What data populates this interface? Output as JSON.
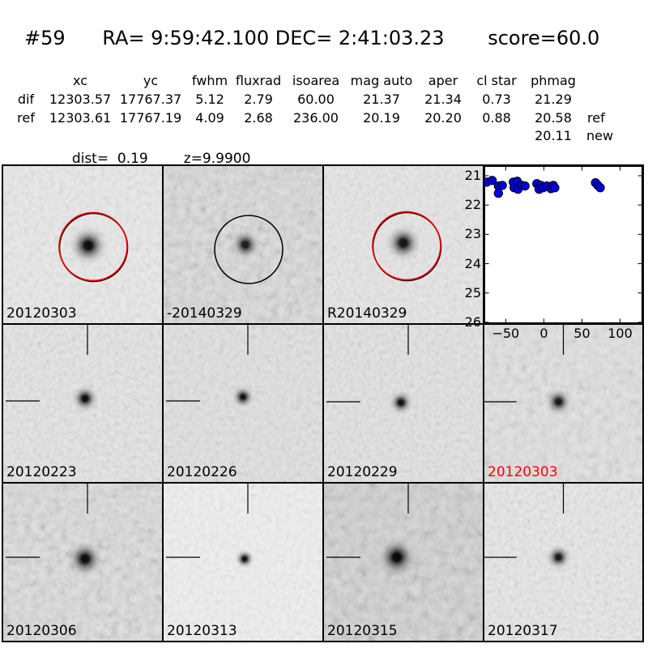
{
  "header": {
    "id": "#59",
    "coords": "RA= 9:59:42.100 DEC= 2:41:03.23",
    "score": "score=60.0"
  },
  "table": {
    "headers": {
      "xc": "xc",
      "yc": "yc",
      "fwhm": "fwhm",
      "fluxrad": "fluxrad",
      "isoarea": "isoarea",
      "mag_auto": "mag auto",
      "aper": "aper",
      "cl_star": "cl star",
      "phmag": "phmag"
    },
    "dif": {
      "name": "dif",
      "xc": "12303.57",
      "yc": "17767.37",
      "fwhm": "5.12",
      "fluxrad": "2.79",
      "isoarea": "60.00",
      "mag_auto": "21.37",
      "aper": "21.34",
      "cl_star": "0.73",
      "phmag": "21.29",
      "suffix": ""
    },
    "ref": {
      "name": "ref",
      "xc": "12303.61",
      "yc": "17767.19",
      "fwhm": "4.09",
      "fluxrad": "2.68",
      "isoarea": "236.00",
      "mag_auto": "20.19",
      "aper": "20.20",
      "cl_star": "0.88",
      "phmag": "20.58",
      "suffix": "ref"
    },
    "new_phmag": {
      "value": "20.11",
      "suffix": "new"
    },
    "dist": "dist=  0.19",
    "z": "z=9.9900"
  },
  "panels": [
    {
      "label": "20120303",
      "label_color": "#000000"
    },
    {
      "label": "-20140329",
      "label_color": "#000000"
    },
    {
      "label": "R20140329",
      "label_color": "#000000"
    },
    {
      "label": "20120223",
      "label_color": "#000000"
    },
    {
      "label": "20120226",
      "label_color": "#000000"
    },
    {
      "label": "20120229",
      "label_color": "#000000"
    },
    {
      "label": "20120303",
      "label_color": "#ff0000"
    },
    {
      "label": "20120306",
      "label_color": "#000000"
    },
    {
      "label": "20120313",
      "label_color": "#000000"
    },
    {
      "label": "20120315",
      "label_color": "#000000"
    },
    {
      "label": "20120317",
      "label_color": "#000000"
    }
  ],
  "colors": {
    "accent_red": "#e60000",
    "marker_blue": "#0000dd",
    "highlight_label_red": "#ff0000"
  },
  "chart_data": {
    "type": "scatter",
    "title": "",
    "xlabel": "",
    "ylabel": "",
    "xlim": [
      -78,
      129.2
    ],
    "ylim": [
      20.67,
      26.03
    ],
    "y_inverted": true,
    "grid": false,
    "legend": null,
    "xticks": [
      -50,
      0,
      50,
      100
    ],
    "yticks": [
      21,
      22,
      23,
      24,
      25,
      26
    ],
    "marker": "o",
    "marker_color": "#0000dd",
    "points": [
      [
        -75.0,
        21.22
      ],
      [
        -67.8,
        21.16
      ],
      [
        -59.6,
        21.35
      ],
      [
        -54.5,
        21.33
      ],
      [
        -59.6,
        21.6
      ],
      [
        -40.1,
        21.22
      ],
      [
        -34.9,
        21.19
      ],
      [
        -39.0,
        21.41
      ],
      [
        -33.9,
        21.46
      ],
      [
        -28.8,
        21.33
      ],
      [
        -24.7,
        21.35
      ],
      [
        -9.2,
        21.27
      ],
      [
        -4.1,
        21.33
      ],
      [
        -6.2,
        21.46
      ],
      [
        -1.0,
        21.41
      ],
      [
        4.1,
        21.35
      ],
      [
        9.3,
        21.44
      ],
      [
        12.3,
        21.33
      ],
      [
        14.4,
        21.41
      ],
      [
        67.8,
        21.24
      ],
      [
        70.9,
        21.33
      ],
      [
        74.0,
        21.41
      ]
    ]
  }
}
